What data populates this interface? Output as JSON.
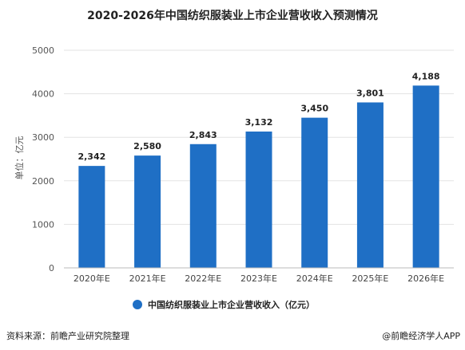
{
  "colors": {
    "bar": "#1f6fc5",
    "legend_dot": "#1f6fc5"
  },
  "chart_data": {
    "type": "bar",
    "title": "2020-2026年中国纺织服装业上市企业营收收入预测情况",
    "ylabel": "单位：亿元",
    "categories": [
      "2020年E",
      "2021年E",
      "2022年E",
      "2023年E",
      "2024年E",
      "2025年E",
      "2026年E"
    ],
    "series": [
      {
        "name": "中国纺织服装业上市企业营收收入（亿元）",
        "values": [
          2342,
          2580,
          2843,
          3132,
          3450,
          3801,
          4188
        ]
      }
    ],
    "data_labels": [
      "2,342",
      "2,580",
      "2,843",
      "3,132",
      "3,450",
      "3,801",
      "4,188"
    ],
    "ylim": [
      0,
      5000
    ],
    "yticks": [
      0,
      1000,
      2000,
      3000,
      4000,
      5000
    ],
    "grid": true,
    "legend_position": "bottom"
  },
  "footer": {
    "source": "资料来源：前瞻产业研究院整理",
    "credit": "@前瞻经济学人APP"
  }
}
